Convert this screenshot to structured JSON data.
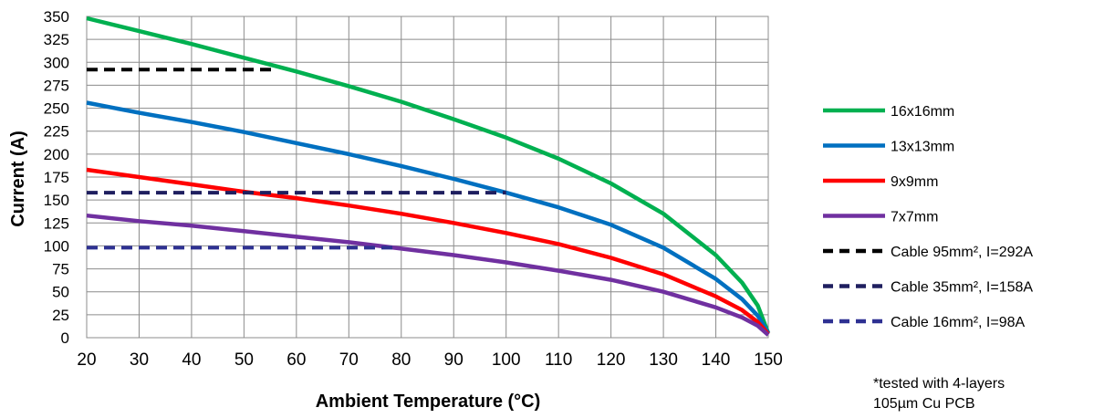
{
  "chart_data": {
    "type": "line",
    "xlabel": "Ambient Temperature (°C)",
    "ylabel": "Current (A)",
    "xlim": [
      20,
      150
    ],
    "ylim": [
      0,
      350
    ],
    "x_ticks": [
      20,
      30,
      40,
      50,
      60,
      70,
      80,
      90,
      100,
      110,
      120,
      130,
      140,
      150
    ],
    "y_ticks": [
      0,
      25,
      50,
      75,
      100,
      125,
      150,
      175,
      200,
      225,
      250,
      275,
      300,
      325,
      350
    ],
    "grid": true,
    "legend_position": "right",
    "series": [
      {
        "name": "16x16mm",
        "color": "#00b050",
        "style": "solid",
        "x": [
          20,
          30,
          40,
          50,
          60,
          70,
          80,
          90,
          100,
          110,
          120,
          130,
          140,
          145,
          148,
          150
        ],
        "y": [
          348,
          334,
          320,
          305,
          290,
          274,
          257,
          238,
          218,
          195,
          168,
          135,
          90,
          60,
          35,
          5
        ]
      },
      {
        "name": "13x13mm",
        "color": "#0070c0",
        "style": "solid",
        "x": [
          20,
          30,
          40,
          50,
          60,
          70,
          80,
          90,
          100,
          110,
          120,
          130,
          140,
          145,
          148,
          150
        ],
        "y": [
          256,
          245,
          235,
          224,
          212,
          200,
          187,
          173,
          158,
          142,
          123,
          98,
          64,
          42,
          24,
          5
        ]
      },
      {
        "name": "9x9mm",
        "color": "#ff0000",
        "style": "solid",
        "x": [
          20,
          30,
          40,
          50,
          60,
          70,
          80,
          90,
          100,
          110,
          120,
          130,
          140,
          145,
          148,
          150
        ],
        "y": [
          183,
          175,
          167,
          159,
          152,
          144,
          135,
          125,
          114,
          102,
          87,
          69,
          45,
          30,
          17,
          4
        ]
      },
      {
        "name": "7x7mm",
        "color": "#7030a0",
        "style": "solid",
        "x": [
          20,
          30,
          40,
          50,
          60,
          70,
          80,
          90,
          100,
          110,
          120,
          130,
          140,
          145,
          148,
          150
        ],
        "y": [
          133,
          127,
          122,
          116,
          110,
          104,
          97,
          90,
          82,
          73,
          63,
          50,
          33,
          22,
          13,
          3
        ]
      },
      {
        "name": "Cable 95mm², I=292A",
        "color": "#000000",
        "style": "dashed",
        "x": [
          20,
          56
        ],
        "y": [
          292,
          292
        ]
      },
      {
        "name": "Cable 35mm², I=158A",
        "color": "#1f1f5f",
        "style": "dashed",
        "x": [
          20,
          100
        ],
        "y": [
          158,
          158
        ]
      },
      {
        "name": "Cable 16mm², I=98A",
        "color": "#2e3192",
        "style": "dashed",
        "x": [
          20,
          79
        ],
        "y": [
          98,
          98
        ]
      }
    ],
    "annotations": [
      "*tested with 4-layers",
      "105µm Cu PCB"
    ]
  }
}
